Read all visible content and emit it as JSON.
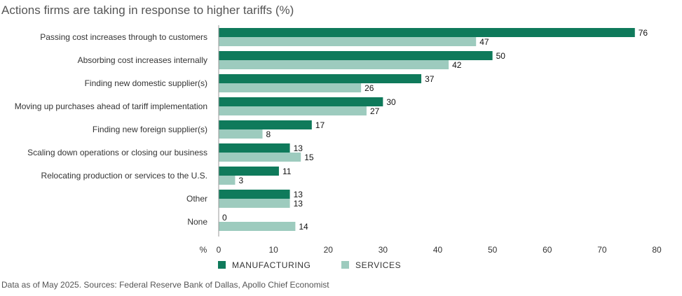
{
  "title": "Actions firms are taking in response to higher tariffs (%)",
  "source": "Data as of May 2025. Sources: Federal Reserve Bank of Dallas, Apollo Chief Economist",
  "colors": {
    "manufacturing": "#0f7a5b",
    "services": "#9dcbbe",
    "axis": "#9a9a9a"
  },
  "chart_data": {
    "type": "bar",
    "orientation": "horizontal",
    "xlabel": "%",
    "xlim": [
      0,
      80
    ],
    "xticks": [
      0,
      10,
      20,
      30,
      40,
      50,
      60,
      70,
      80
    ],
    "grid": false,
    "legend_position": "bottom",
    "categories": [
      "Passing cost increases through to customers",
      "Absorbing cost increases internally",
      "Finding new domestic supplier(s)",
      "Moving up purchases ahead of tariff implementation",
      "Finding new foreign supplier(s)",
      "Scaling down operations or closing our business",
      "Relocating production or services to the U.S.",
      "Other",
      "None"
    ],
    "series": [
      {
        "name": "MANUFACTURING",
        "values": [
          76,
          50,
          37,
          30,
          17,
          13,
          11,
          13,
          0
        ]
      },
      {
        "name": "SERVICES",
        "values": [
          47,
          42,
          26,
          27,
          8,
          15,
          3,
          13,
          14
        ]
      }
    ]
  }
}
